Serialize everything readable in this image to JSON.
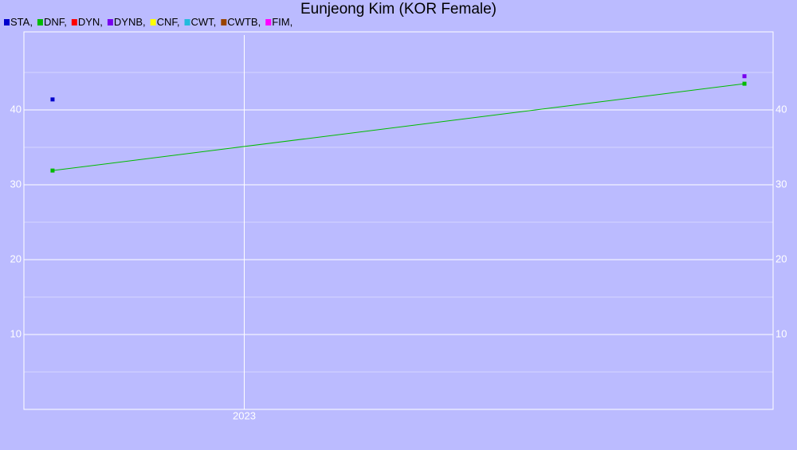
{
  "chart_data": {
    "type": "line",
    "title": "Eunjeong Kim (KOR Female)",
    "xlim": [
      2022,
      2025.4
    ],
    "xticks": [
      2023
    ],
    "ylim": [
      0,
      50
    ],
    "yticks": [
      10,
      20,
      30,
      40
    ],
    "minor_yticks": [
      5,
      15,
      25,
      35,
      45
    ],
    "grid": true,
    "series": [
      {
        "name": "STA,",
        "color": "#0000cc",
        "x": [
          2022.13
        ],
        "values": [
          41.4
        ]
      },
      {
        "name": "DNF,",
        "color": "#00bb00",
        "x": [
          2022.13,
          2025.27
        ],
        "values": [
          31.9,
          43.5
        ]
      },
      {
        "name": "DYN,",
        "color": "#ff0000",
        "x": [],
        "values": []
      },
      {
        "name": "DYNB,",
        "color": "#7700ee",
        "x": [
          2025.27
        ],
        "values": [
          44.5
        ]
      },
      {
        "name": "CNF,",
        "color": "#ffff00",
        "x": [],
        "values": []
      },
      {
        "name": "CWT,",
        "color": "#22bbdd",
        "x": [],
        "values": []
      },
      {
        "name": "CWTB,",
        "color": "#994400",
        "x": [],
        "values": []
      },
      {
        "name": "FIM,",
        "color": "#ff00ff",
        "x": [],
        "values": []
      }
    ]
  }
}
